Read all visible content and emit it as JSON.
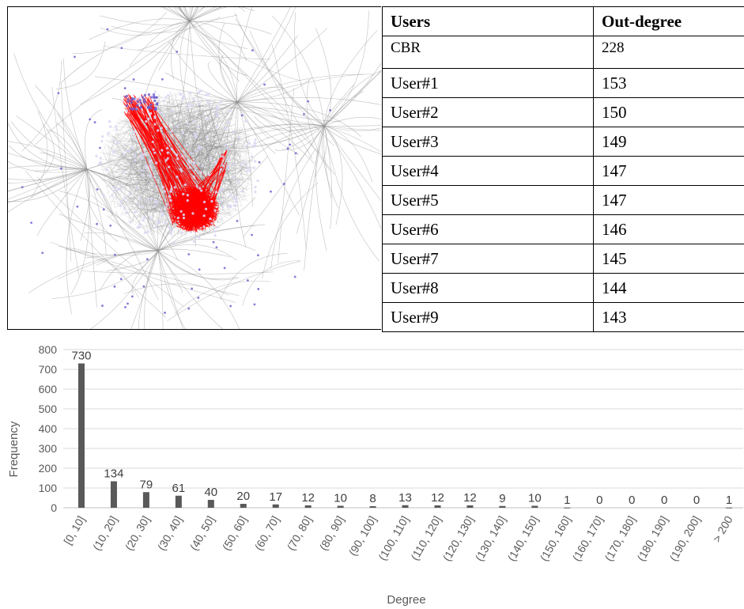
{
  "table": {
    "headers": [
      "Users",
      "Out-degree"
    ],
    "rows": [
      [
        "CBR",
        "228"
      ],
      [
        "User#1",
        "153"
      ],
      [
        "User#2",
        "150"
      ],
      [
        "User#3",
        "149"
      ],
      [
        "User#4",
        "147"
      ],
      [
        "User#5",
        "147"
      ],
      [
        "User#6",
        "146"
      ],
      [
        "User#7",
        "145"
      ],
      [
        "User#8",
        "144"
      ],
      [
        "User#9",
        "143"
      ]
    ]
  },
  "network": {
    "highlight_color": "#ff0000",
    "edge_color": "#8c8c8c",
    "node_color": "#6a5acd"
  },
  "chart_data": {
    "type": "bar",
    "categories": [
      "[0, 10]",
      "(10, 20]",
      "(20, 30]",
      "(30, 40]",
      "(40, 50]",
      "(50, 60]",
      "(60, 70]",
      "(70, 80]",
      "(80, 90]",
      "(90, 100]",
      "(100, 110]",
      "(110, 120]",
      "(120, 130]",
      "(130, 140]",
      "(140, 150]",
      "(150, 160]",
      "(160, 170]",
      "(170, 180]",
      "(180, 190]",
      "(190, 200]",
      "> 200"
    ],
    "values": [
      730,
      134,
      79,
      61,
      40,
      20,
      17,
      12,
      10,
      8,
      13,
      12,
      12,
      9,
      10,
      1,
      0,
      0,
      0,
      0,
      1
    ],
    "xlabel": "Degree",
    "ylabel": "Frequency",
    "ylim": [
      0,
      800
    ],
    "yticks": [
      0,
      100,
      200,
      300,
      400,
      500,
      600,
      700,
      800
    ],
    "grid": true,
    "bar_color": "#595959"
  }
}
